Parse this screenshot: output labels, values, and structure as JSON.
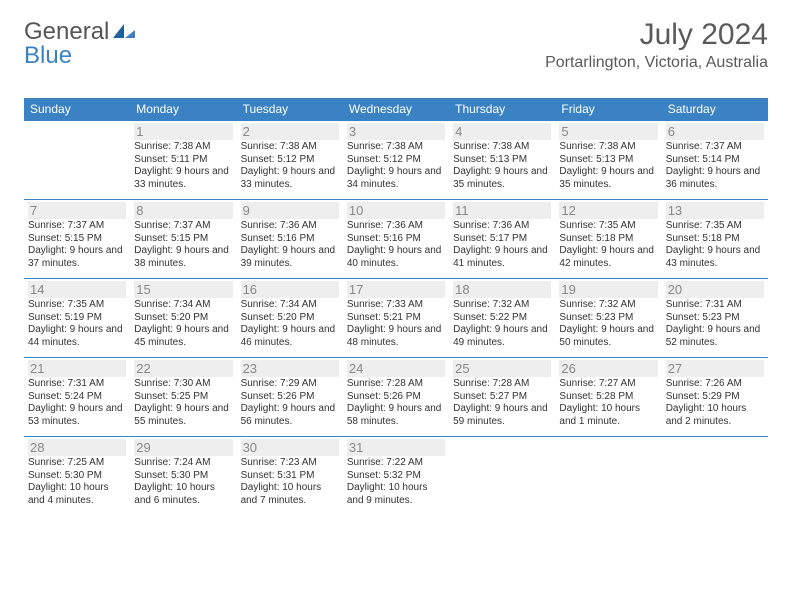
{
  "logo": {
    "part1": "General",
    "part2": "Blue"
  },
  "title": "July 2024",
  "location": "Portarlington, Victoria, Australia",
  "header_bg": "#3b82c4",
  "header_fg": "#ffffff",
  "border_color": "#3b82c4",
  "daynum_bg": "#eeeeee",
  "daynum_fg": "#888888",
  "text_color": "#333333",
  "weekdays": [
    "Sunday",
    "Monday",
    "Tuesday",
    "Wednesday",
    "Thursday",
    "Friday",
    "Saturday"
  ],
  "weeks": [
    [
      null,
      {
        "n": "1",
        "sr": "7:38 AM",
        "ss": "5:11 PM",
        "dl": "9 hours and 33 minutes."
      },
      {
        "n": "2",
        "sr": "7:38 AM",
        "ss": "5:12 PM",
        "dl": "9 hours and 33 minutes."
      },
      {
        "n": "3",
        "sr": "7:38 AM",
        "ss": "5:12 PM",
        "dl": "9 hours and 34 minutes."
      },
      {
        "n": "4",
        "sr": "7:38 AM",
        "ss": "5:13 PM",
        "dl": "9 hours and 35 minutes."
      },
      {
        "n": "5",
        "sr": "7:38 AM",
        "ss": "5:13 PM",
        "dl": "9 hours and 35 minutes."
      },
      {
        "n": "6",
        "sr": "7:37 AM",
        "ss": "5:14 PM",
        "dl": "9 hours and 36 minutes."
      }
    ],
    [
      {
        "n": "7",
        "sr": "7:37 AM",
        "ss": "5:15 PM",
        "dl": "9 hours and 37 minutes."
      },
      {
        "n": "8",
        "sr": "7:37 AM",
        "ss": "5:15 PM",
        "dl": "9 hours and 38 minutes."
      },
      {
        "n": "9",
        "sr": "7:36 AM",
        "ss": "5:16 PM",
        "dl": "9 hours and 39 minutes."
      },
      {
        "n": "10",
        "sr": "7:36 AM",
        "ss": "5:16 PM",
        "dl": "9 hours and 40 minutes."
      },
      {
        "n": "11",
        "sr": "7:36 AM",
        "ss": "5:17 PM",
        "dl": "9 hours and 41 minutes."
      },
      {
        "n": "12",
        "sr": "7:35 AM",
        "ss": "5:18 PM",
        "dl": "9 hours and 42 minutes."
      },
      {
        "n": "13",
        "sr": "7:35 AM",
        "ss": "5:18 PM",
        "dl": "9 hours and 43 minutes."
      }
    ],
    [
      {
        "n": "14",
        "sr": "7:35 AM",
        "ss": "5:19 PM",
        "dl": "9 hours and 44 minutes."
      },
      {
        "n": "15",
        "sr": "7:34 AM",
        "ss": "5:20 PM",
        "dl": "9 hours and 45 minutes."
      },
      {
        "n": "16",
        "sr": "7:34 AM",
        "ss": "5:20 PM",
        "dl": "9 hours and 46 minutes."
      },
      {
        "n": "17",
        "sr": "7:33 AM",
        "ss": "5:21 PM",
        "dl": "9 hours and 48 minutes."
      },
      {
        "n": "18",
        "sr": "7:32 AM",
        "ss": "5:22 PM",
        "dl": "9 hours and 49 minutes."
      },
      {
        "n": "19",
        "sr": "7:32 AM",
        "ss": "5:23 PM",
        "dl": "9 hours and 50 minutes."
      },
      {
        "n": "20",
        "sr": "7:31 AM",
        "ss": "5:23 PM",
        "dl": "9 hours and 52 minutes."
      }
    ],
    [
      {
        "n": "21",
        "sr": "7:31 AM",
        "ss": "5:24 PM",
        "dl": "9 hours and 53 minutes."
      },
      {
        "n": "22",
        "sr": "7:30 AM",
        "ss": "5:25 PM",
        "dl": "9 hours and 55 minutes."
      },
      {
        "n": "23",
        "sr": "7:29 AM",
        "ss": "5:26 PM",
        "dl": "9 hours and 56 minutes."
      },
      {
        "n": "24",
        "sr": "7:28 AM",
        "ss": "5:26 PM",
        "dl": "9 hours and 58 minutes."
      },
      {
        "n": "25",
        "sr": "7:28 AM",
        "ss": "5:27 PM",
        "dl": "9 hours and 59 minutes."
      },
      {
        "n": "26",
        "sr": "7:27 AM",
        "ss": "5:28 PM",
        "dl": "10 hours and 1 minute."
      },
      {
        "n": "27",
        "sr": "7:26 AM",
        "ss": "5:29 PM",
        "dl": "10 hours and 2 minutes."
      }
    ],
    [
      {
        "n": "28",
        "sr": "7:25 AM",
        "ss": "5:30 PM",
        "dl": "10 hours and 4 minutes."
      },
      {
        "n": "29",
        "sr": "7:24 AM",
        "ss": "5:30 PM",
        "dl": "10 hours and 6 minutes."
      },
      {
        "n": "30",
        "sr": "7:23 AM",
        "ss": "5:31 PM",
        "dl": "10 hours and 7 minutes."
      },
      {
        "n": "31",
        "sr": "7:22 AM",
        "ss": "5:32 PM",
        "dl": "10 hours and 9 minutes."
      },
      null,
      null,
      null
    ]
  ],
  "labels": {
    "sunrise": "Sunrise:",
    "sunset": "Sunset:",
    "daylight": "Daylight:"
  }
}
